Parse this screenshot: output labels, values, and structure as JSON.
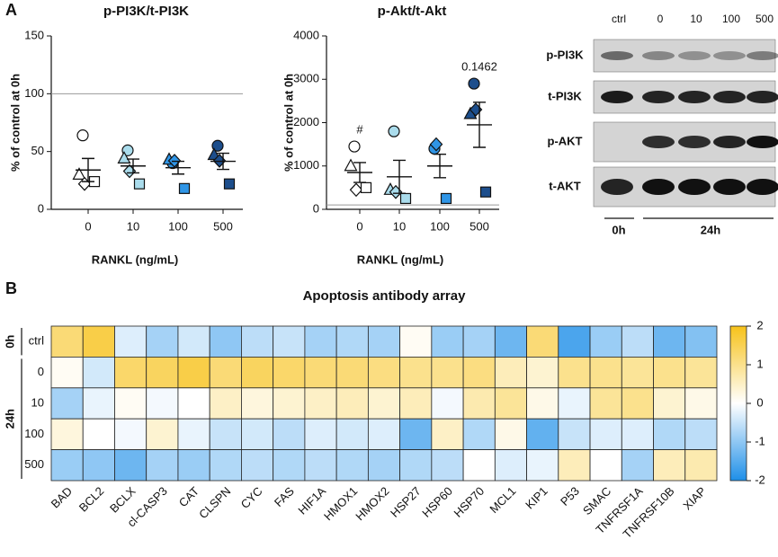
{
  "panel_labels": [
    "A",
    "B"
  ],
  "chart_data": [
    {
      "type": "dotplot",
      "title": "p-PI3K/t-PI3K",
      "ylabel": "% of control at 0h",
      "xlabel": "RANKL (ng/mL)",
      "categories": [
        "0",
        "10",
        "100",
        "500"
      ],
      "category_colors": [
        "#ffffff",
        "#aadcec",
        "#2f95e6",
        "#1d4e8c"
      ],
      "series": [
        {
          "marker": "circle",
          "values": [
            64,
            51,
            40,
            55
          ]
        },
        {
          "marker": "triangle",
          "values": [
            30,
            44,
            43,
            47
          ]
        },
        {
          "marker": "diamond",
          "values": [
            22,
            33,
            42,
            42
          ]
        },
        {
          "marker": "square",
          "values": [
            24,
            22,
            18,
            22
          ]
        }
      ],
      "mean": [
        34,
        37.5,
        36,
        41.5
      ],
      "sem": [
        10,
        6,
        5.5,
        7
      ],
      "reference": 100,
      "ylim": [
        0,
        150
      ],
      "yticks": [
        0,
        50,
        100,
        150
      ]
    },
    {
      "type": "dotplot",
      "title": "p-Akt/t-Akt",
      "ylabel": "% of control at 0h",
      "xlabel": "RANKL (ng/mL)",
      "categories": [
        "0",
        "10",
        "100",
        "500"
      ],
      "category_colors": [
        "#ffffff",
        "#aadcec",
        "#2f95e6",
        "#1d4e8c"
      ],
      "series": [
        {
          "marker": "circle",
          "values": [
            1450,
            1800,
            1400,
            2900
          ]
        },
        {
          "marker": "triangle",
          "values": [
            1000,
            450,
            null,
            2200
          ]
        },
        {
          "marker": "diamond",
          "values": [
            450,
            400,
            1500,
            2300
          ]
        },
        {
          "marker": "square",
          "values": [
            500,
            250,
            250,
            400
          ]
        }
      ],
      "mean": [
        850,
        750,
        1000,
        1950
      ],
      "sem": [
        230,
        380,
        270,
        520
      ],
      "annotations": [
        {
          "category": 0,
          "text": "#"
        },
        {
          "category": 3,
          "text": "0.1462"
        }
      ],
      "reference": 100,
      "ylim": [
        0,
        4000
      ],
      "yticks": [
        0,
        1000,
        2000,
        3000,
        4000
      ]
    },
    {
      "type": "heatmap",
      "title": "Apoptosis antibody array",
      "categories": [
        "BAD",
        "BCL2",
        "BCLX",
        "cl-CASP3",
        "CAT",
        "CLSPN",
        "CYC",
        "FAS",
        "HIF1A",
        "HMOX1",
        "HMOX2",
        "HSP27",
        "HSP60",
        "HSP70",
        "MCL1",
        "KIP1",
        "P53",
        "SMAC",
        "TNFRSF1A",
        "TNFRSF10B",
        "XIAP"
      ],
      "row_groups": [
        {
          "name": "0h",
          "rows": [
            "ctrl"
          ]
        },
        {
          "name": "24h",
          "rows": [
            "0",
            "10",
            "100",
            "500"
          ]
        }
      ],
      "values": [
        [
          1.2,
          1.6,
          -0.3,
          -0.8,
          -0.4,
          -1.0,
          -0.6,
          -0.5,
          -0.8,
          -0.7,
          -0.8,
          0.1,
          -0.9,
          -0.8,
          -1.3,
          1.2,
          -1.6,
          -0.9,
          -0.6,
          -1.3,
          -1.1
        ],
        [
          0.1,
          -0.4,
          1.3,
          1.4,
          1.6,
          1.2,
          1.4,
          1.3,
          1.2,
          1.2,
          1.1,
          1.0,
          1.0,
          1.1,
          0.6,
          0.4,
          1.0,
          1.0,
          0.9,
          1.0,
          0.9
        ],
        [
          -0.8,
          -0.2,
          0.1,
          -0.1,
          0.0,
          0.5,
          0.3,
          0.4,
          0.5,
          0.6,
          0.4,
          0.6,
          -0.1,
          0.7,
          0.9,
          0.2,
          -0.2,
          0.9,
          1.0,
          0.4,
          0.2
        ],
        [
          0.3,
          0.0,
          -0.1,
          0.4,
          -0.2,
          -0.5,
          -0.4,
          -0.6,
          -0.3,
          -0.4,
          -0.3,
          -1.3,
          0.5,
          -0.7,
          0.2,
          -1.4,
          -0.5,
          -0.3,
          -0.3,
          -0.7,
          -0.6
        ],
        [
          -0.9,
          -1.0,
          -1.3,
          -0.8,
          -0.9,
          -0.7,
          -0.6,
          -0.7,
          -0.6,
          -0.7,
          -0.8,
          -0.7,
          -0.6,
          0.0,
          -0.3,
          -0.2,
          0.6,
          0.0,
          -0.8,
          0.6,
          0.7
        ]
      ],
      "colormap": [
        "#1e8fe8",
        "#ffffff",
        "#f7c21a"
      ],
      "zlim": [
        -2,
        2
      ],
      "zticks": [
        2,
        1,
        0,
        -1,
        -2
      ]
    }
  ],
  "blot": {
    "columns": [
      "ctrl",
      "0",
      "10",
      "100",
      "500"
    ],
    "rows": [
      "p-PI3K",
      "t-PI3K",
      "p-AKT",
      "t-AKT"
    ],
    "groups": [
      "0h",
      "24h"
    ]
  }
}
